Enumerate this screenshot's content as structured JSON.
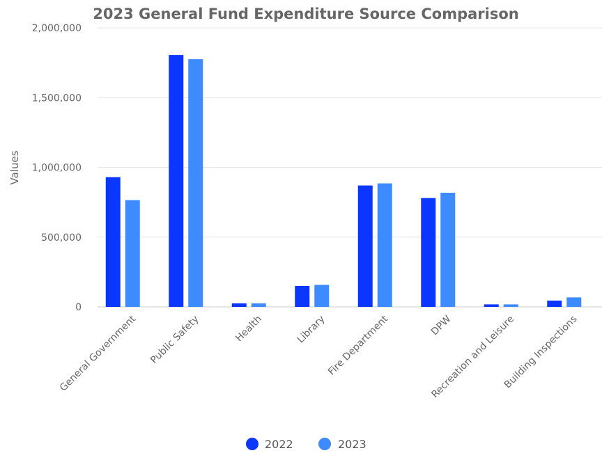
{
  "chart_data": {
    "type": "bar",
    "title": "2023 General Fund Expenditure Source Comparison",
    "xlabel": "",
    "ylabel": "Values",
    "ylim": [
      0,
      2000000
    ],
    "yticks": [
      0,
      500000,
      1000000,
      1500000,
      2000000
    ],
    "ytick_labels": [
      "0",
      "500,000",
      "1,000,000",
      "1,500,000",
      "2,000,000"
    ],
    "categories": [
      "General Government",
      "Public Safety",
      "Health",
      "Library",
      "Fire Department",
      "DPW",
      "Recreation and Leisure",
      "Building Inspections"
    ],
    "series": [
      {
        "name": "2022",
        "color": "#0a36ff",
        "values": [
          930000,
          1805000,
          25000,
          150000,
          870000,
          780000,
          18000,
          45000
        ]
      },
      {
        "name": "2023",
        "color": "#3d8bff",
        "values": [
          765000,
          1775000,
          25000,
          158000,
          885000,
          818000,
          18000,
          68000
        ]
      }
    ],
    "grid": true,
    "legend_position": "bottom"
  }
}
